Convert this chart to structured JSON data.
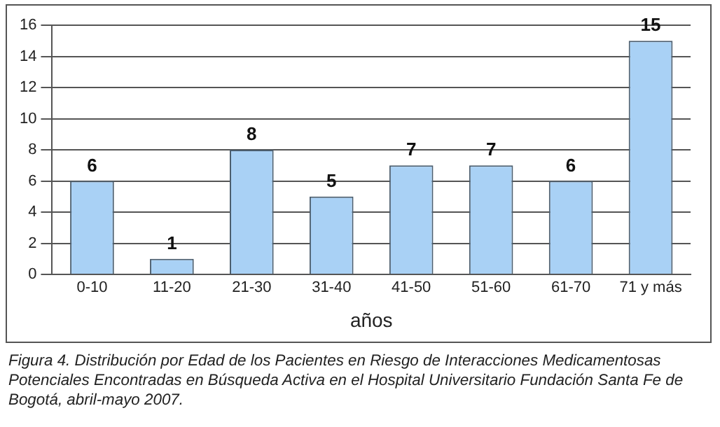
{
  "chart_data": {
    "type": "bar",
    "xlabel": "años",
    "categories": [
      "0-10",
      "11-20",
      "21-30",
      "31-40",
      "41-50",
      "51-60",
      "61-70",
      "71 y más"
    ],
    "values": [
      6,
      1,
      8,
      5,
      7,
      7,
      6,
      15
    ],
    "color": "#a9d1f5",
    "ylim": [
      0,
      16
    ],
    "yticks": [
      0,
      2,
      4,
      6,
      8,
      10,
      12,
      14,
      16
    ],
    "grid": "y",
    "legend": false,
    "data_labels": true,
    "annotations": [
      "Figura 4. Distribución por Edad de los Pacientes en Riesgo de Interacciones Medicamentosas Potenciales Encontradas en Búsqueda Activa en el Hospital Universitario Fundación Santa Fe de Bogotá, abril-mayo 2007."
    ]
  }
}
